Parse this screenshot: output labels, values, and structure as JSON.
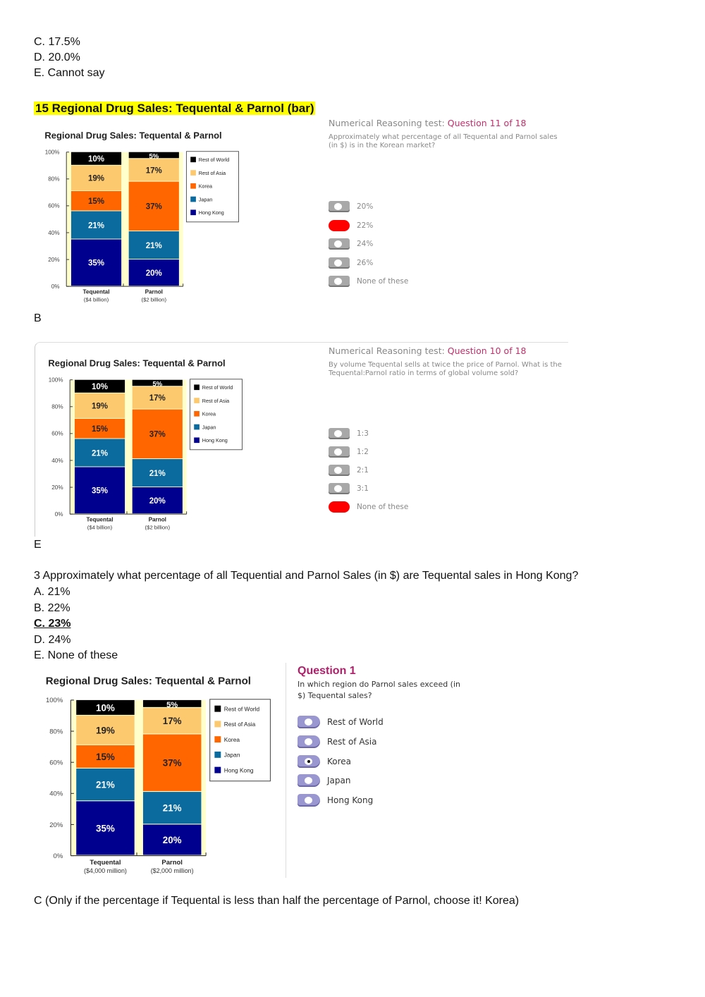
{
  "prev_options": [
    "C. 17.5%",
    "D. 20.0%",
    "E. Cannot say"
  ],
  "section_heading": "15 Regional Drug Sales: Tequental & Parnol (bar)",
  "q11": {
    "prefix": "Numerical Reasoning test: ",
    "question_no": "Question 11 of 18",
    "text": "Approximately what percentage of all Tequental and Parnol sales (in $) is in the Korean market?",
    "options": [
      "20%",
      "22%",
      "24%",
      "26%",
      "None of these"
    ],
    "selected": 1
  },
  "answer_1": "B",
  "q10": {
    "prefix": "Numerical Reasoning test: ",
    "question_no": "Question 10 of 18",
    "text": "By volume Tequental sells at twice the price of Parnol.  What is the Tequental:Parnol ratio in terms of global volume sold?",
    "options": [
      "1:3",
      "1:2",
      "2:1",
      "3:1",
      "None of these"
    ],
    "selected": 4
  },
  "answer_2": "E",
  "q3": {
    "text": "3 Approximately what percentage of all Tequential and Parnol Sales (in $) are Tequental sales in Hong Kong?",
    "options": [
      "A. 21%",
      "B. 22%",
      "C. 23%",
      "D. 24%",
      "E. None of these"
    ],
    "correct": 2
  },
  "q1": {
    "title": "Question 1",
    "text": "In which region do Parnol sales exceed (in $) Tequental sales?",
    "options": [
      "Rest of World",
      "Rest of Asia",
      "Korea",
      "Japan",
      "Hong Kong"
    ],
    "selected": 2
  },
  "answer_3": "C (Only if the percentage if Tequental is less than half the percentage of Parnol, choose it! Korea)",
  "colors": {
    "Rest of World": "#000000",
    "Rest of Asia": "#fdc96f",
    "Korea": "#ff6600",
    "Japan": "#0b6b9e",
    "Hong Kong": "#00008f",
    "plot_bg": "#ffffcc"
  },
  "chart_data": [
    {
      "type": "bar",
      "stacked": true,
      "title": "Regional Drug Sales: Tequental & Parnol",
      "categories": [
        "Tequental",
        "Parnol"
      ],
      "category_sublabels": [
        "($4 billion)",
        "($2 billion)"
      ],
      "yticks": [
        "0%",
        "20%",
        "40%",
        "60%",
        "80%",
        "100%"
      ],
      "ylim": [
        0,
        100
      ],
      "legend": "right",
      "series": [
        {
          "name": "Hong Kong",
          "values": [
            35,
            20
          ]
        },
        {
          "name": "Japan",
          "values": [
            21,
            21
          ]
        },
        {
          "name": "Korea",
          "values": [
            15,
            37
          ]
        },
        {
          "name": "Rest of Asia",
          "values": [
            19,
            17
          ]
        },
        {
          "name": "Rest of World",
          "values": [
            10,
            5
          ]
        }
      ]
    },
    {
      "type": "bar",
      "stacked": true,
      "title": "Regional Drug Sales: Tequental & Parnol",
      "categories": [
        "Tequental",
        "Parnol"
      ],
      "category_sublabels": [
        "($4 billion)",
        "($2 billion)"
      ],
      "yticks": [
        "0%",
        "20%",
        "40%",
        "60%",
        "80%",
        "100%"
      ],
      "ylim": [
        0,
        100
      ],
      "legend": "right",
      "series": [
        {
          "name": "Hong Kong",
          "values": [
            35,
            20
          ]
        },
        {
          "name": "Japan",
          "values": [
            21,
            21
          ]
        },
        {
          "name": "Korea",
          "values": [
            15,
            37
          ]
        },
        {
          "name": "Rest of Asia",
          "values": [
            19,
            17
          ]
        },
        {
          "name": "Rest of World",
          "values": [
            10,
            5
          ]
        }
      ]
    },
    {
      "type": "bar",
      "stacked": true,
      "title": "Regional Drug Sales: Tequental & Parnol",
      "categories": [
        "Tequental",
        "Parnol"
      ],
      "category_sublabels": [
        "($4,000 million)",
        "($2,000 million)"
      ],
      "yticks": [
        "0%",
        "20%",
        "40%",
        "60%",
        "80%",
        "100%"
      ],
      "ylim": [
        0,
        100
      ],
      "legend": "right",
      "series": [
        {
          "name": "Hong Kong",
          "values": [
            35,
            20
          ]
        },
        {
          "name": "Japan",
          "values": [
            21,
            21
          ]
        },
        {
          "name": "Korea",
          "values": [
            15,
            37
          ]
        },
        {
          "name": "Rest of Asia",
          "values": [
            19,
            17
          ]
        },
        {
          "name": "Rest of World",
          "values": [
            10,
            5
          ]
        }
      ]
    }
  ]
}
